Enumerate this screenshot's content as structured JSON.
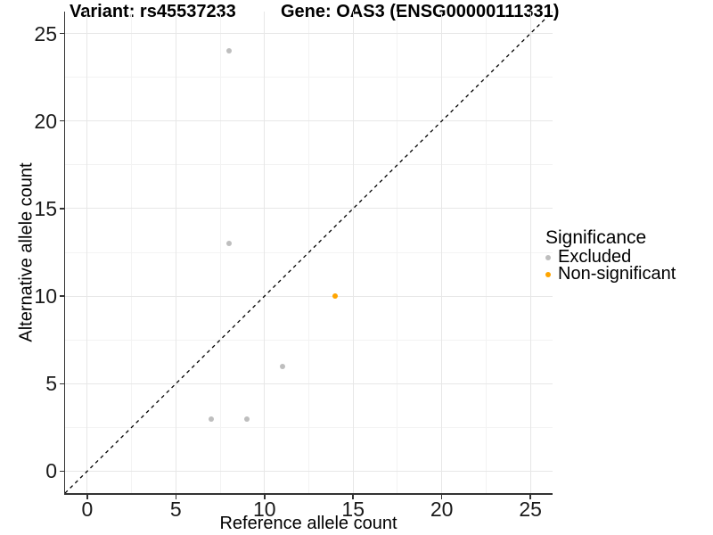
{
  "titles": {
    "variant": "Variant: rs45537233",
    "gene": "Gene: OAS3 (ENSG00000111331)"
  },
  "chart_data": {
    "type": "scatter",
    "title_left": "Variant: rs45537233",
    "title_right": "Gene: OAS3 (ENSG00000111331)",
    "xlabel": "Reference allele count",
    "ylabel": "Alternative allele count",
    "x_ticks": [
      0,
      5,
      10,
      15,
      20,
      25
    ],
    "y_ticks": [
      0,
      5,
      10,
      15,
      20,
      25
    ],
    "x_range": [
      -1.25,
      26.25
    ],
    "y_range": [
      -1.25,
      26.25
    ],
    "minor_tick_step": 2.5,
    "grid": "major+minor",
    "identity_line": {
      "equation": "y = x",
      "style": "dashed",
      "color": "#000000"
    },
    "legend": {
      "title": "Significance",
      "position": "right"
    },
    "series": [
      {
        "name": "Excluded",
        "color": "#BEBEBE",
        "points": [
          {
            "x": 8,
            "y": 24
          },
          {
            "x": 8,
            "y": 13
          },
          {
            "x": 11,
            "y": 6
          },
          {
            "x": 7,
            "y": 3
          },
          {
            "x": 9,
            "y": 3
          }
        ]
      },
      {
        "name": "Non-significant",
        "color": "#FFA500",
        "points": [
          {
            "x": 14,
            "y": 10
          }
        ]
      }
    ],
    "colors": {
      "grid_major": "#e7e7e7",
      "grid_minor": "#f3f3f3",
      "axis_line": "#333333",
      "text": "#000000"
    }
  }
}
